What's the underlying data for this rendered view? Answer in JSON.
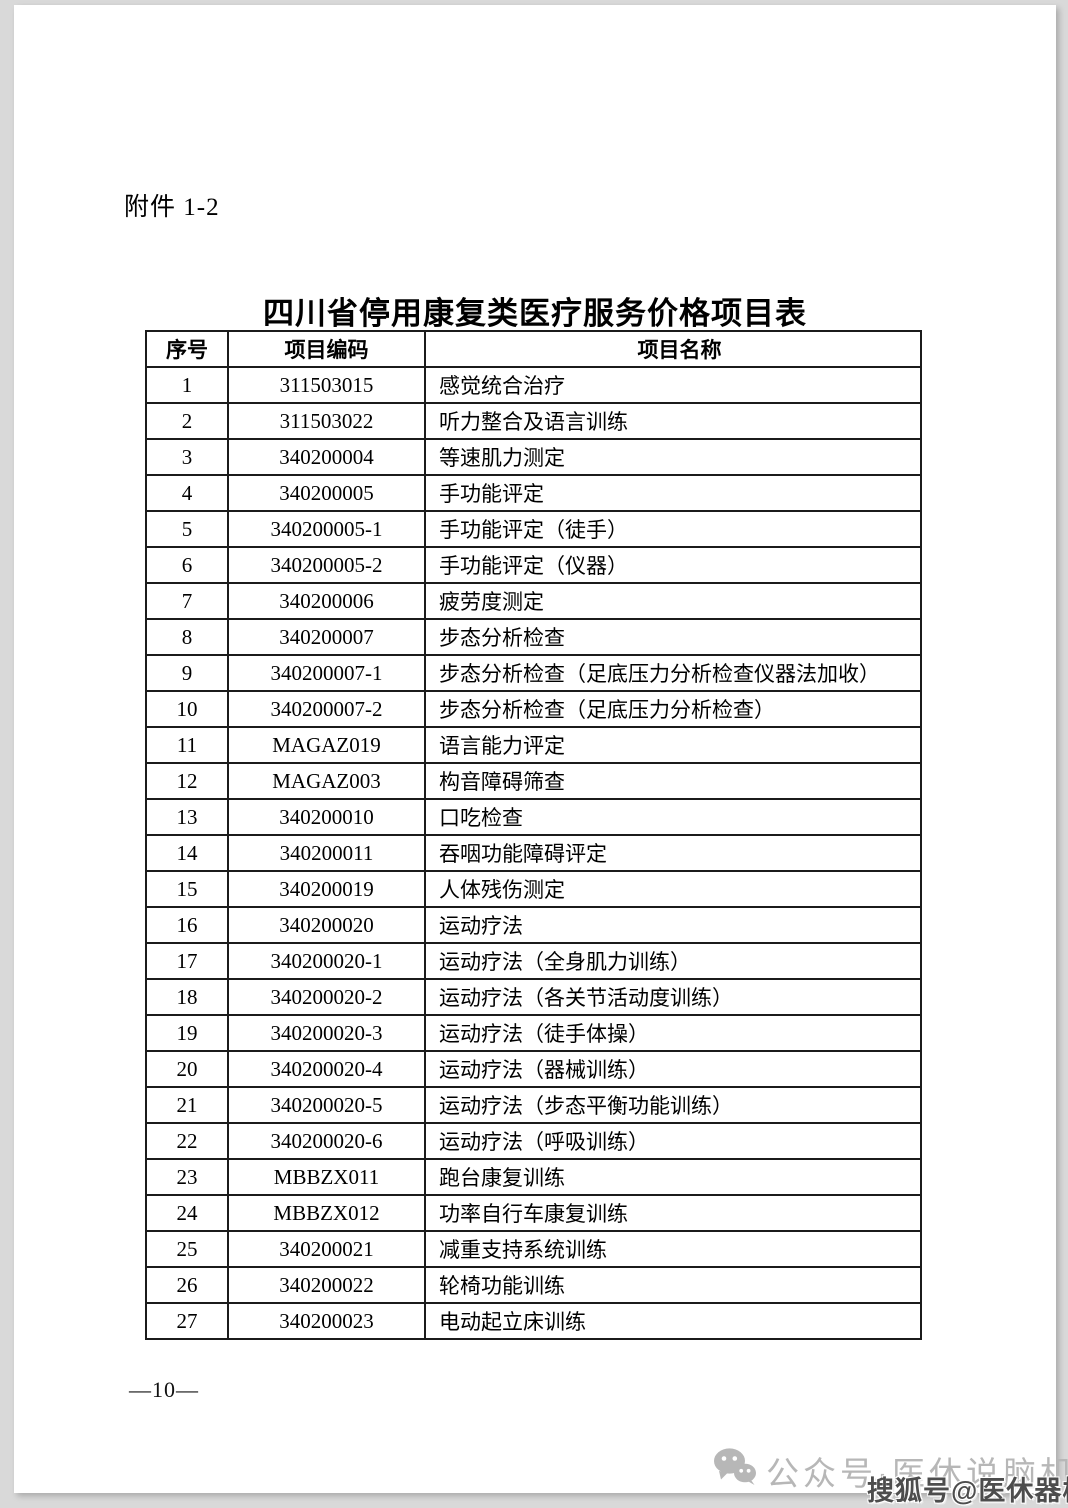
{
  "page": {
    "attachment_label": "附件 1-2",
    "title": "四川省停用康复类医疗服务价格项目表",
    "page_number": "—10—"
  },
  "table": {
    "columns": [
      "序号",
      "项目编码",
      "项目名称"
    ],
    "rows": [
      {
        "seq": "1",
        "code": "311503015",
        "name": "感觉统合治疗"
      },
      {
        "seq": "2",
        "code": "311503022",
        "name": "听力整合及语言训练"
      },
      {
        "seq": "3",
        "code": "340200004",
        "name": "等速肌力测定"
      },
      {
        "seq": "4",
        "code": "340200005",
        "name": "手功能评定"
      },
      {
        "seq": "5",
        "code": "340200005-1",
        "name": "手功能评定（徒手）"
      },
      {
        "seq": "6",
        "code": "340200005-2",
        "name": "手功能评定（仪器）"
      },
      {
        "seq": "7",
        "code": "340200006",
        "name": "疲劳度测定"
      },
      {
        "seq": "8",
        "code": "340200007",
        "name": "步态分析检查"
      },
      {
        "seq": "9",
        "code": "340200007-1",
        "name": "步态分析检查（足底压力分析检查仪器法加收）"
      },
      {
        "seq": "10",
        "code": "340200007-2",
        "name": "步态分析检查（足底压力分析检查）"
      },
      {
        "seq": "11",
        "code": "MAGAZ019",
        "name": "语言能力评定"
      },
      {
        "seq": "12",
        "code": "MAGAZ003",
        "name": "构音障碍筛查"
      },
      {
        "seq": "13",
        "code": "340200010",
        "name": "口吃检查"
      },
      {
        "seq": "14",
        "code": "340200011",
        "name": "吞咽功能障碍评定"
      },
      {
        "seq": "15",
        "code": "340200019",
        "name": "人体残伤测定"
      },
      {
        "seq": "16",
        "code": "340200020",
        "name": "运动疗法"
      },
      {
        "seq": "17",
        "code": "340200020-1",
        "name": "运动疗法（全身肌力训练）"
      },
      {
        "seq": "18",
        "code": "340200020-2",
        "name": "运动疗法（各关节活动度训练）"
      },
      {
        "seq": "19",
        "code": "340200020-3",
        "name": "运动疗法（徒手体操）"
      },
      {
        "seq": "20",
        "code": "340200020-4",
        "name": "运动疗法（器械训练）"
      },
      {
        "seq": "21",
        "code": "340200020-5",
        "name": "运动疗法（步态平衡功能训练）"
      },
      {
        "seq": "22",
        "code": "340200020-6",
        "name": "运动疗法（呼吸训练）"
      },
      {
        "seq": "23",
        "code": "MBBZX011",
        "name": "跑台康复训练"
      },
      {
        "seq": "24",
        "code": "MBBZX012",
        "name": "功率自行车康复训练"
      },
      {
        "seq": "25",
        "code": "340200021",
        "name": "减重支持系统训练"
      },
      {
        "seq": "26",
        "code": "340200022",
        "name": "轮椅功能训练"
      },
      {
        "seq": "27",
        "code": "340200023",
        "name": "电动起立床训练"
      }
    ]
  },
  "footer": {
    "icon": "wechat-icon",
    "official_account_text": "公众号·医休说脑机",
    "sohu_watermark_text": "搜狐号@医休器械"
  },
  "colors": {
    "canvas_bg": "#d9d9d9",
    "page_bg": "#ffffff",
    "text": "#000000",
    "table_border": "#1b1b1b",
    "watermark_light": "#b7b7b7",
    "watermark_dark": "#4d4d4d"
  }
}
